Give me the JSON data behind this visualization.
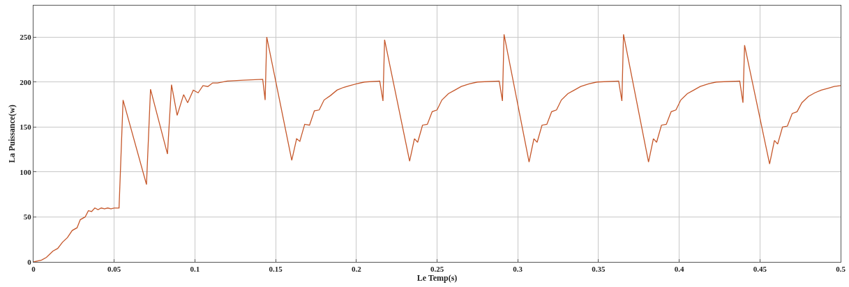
{
  "chart_data": {
    "type": "line",
    "xlabel": "Le Temp(s)",
    "ylabel": "La Puissance(w)",
    "xlim": [
      0,
      0.5
    ],
    "ylim": [
      0,
      285
    ],
    "xticks": [
      0,
      0.05,
      0.1,
      0.15,
      0.2,
      0.25,
      0.3,
      0.35,
      0.4,
      0.45,
      0.5
    ],
    "yticks": [
      0,
      50,
      100,
      150,
      200,
      250
    ],
    "grid": true,
    "series": [
      {
        "color": "#c5572a",
        "x": [
          0,
          0.005,
          0.008,
          0.012,
          0.015,
          0.018,
          0.021,
          0.024,
          0.027,
          0.029,
          0.032,
          0.034,
          0.036,
          0.038,
          0.04,
          0.042,
          0.044,
          0.046,
          0.048,
          0.05,
          0.053,
          0.0555,
          0.07,
          0.0725,
          0.083,
          0.0855,
          0.089,
          0.093,
          0.0955,
          0.099,
          0.102,
          0.105,
          0.108,
          0.111,
          0.114,
          0.12,
          0.13,
          0.142,
          0.1435,
          0.1445,
          0.16,
          0.163,
          0.165,
          0.168,
          0.171,
          0.174,
          0.177,
          0.18,
          0.184,
          0.188,
          0.192,
          0.196,
          0.2,
          0.205,
          0.2145,
          0.2165,
          0.2175,
          0.233,
          0.236,
          0.238,
          0.241,
          0.244,
          0.247,
          0.25,
          0.253,
          0.257,
          0.261,
          0.265,
          0.27,
          0.275,
          0.2885,
          0.2905,
          0.2915,
          0.307,
          0.31,
          0.312,
          0.315,
          0.318,
          0.321,
          0.324,
          0.327,
          0.331,
          0.335,
          0.339,
          0.344,
          0.349,
          0.3625,
          0.3645,
          0.3655,
          0.381,
          0.384,
          0.386,
          0.389,
          0.392,
          0.395,
          0.398,
          0.401,
          0.405,
          0.409,
          0.413,
          0.418,
          0.423,
          0.4375,
          0.4395,
          0.4405,
          0.456,
          0.459,
          0.461,
          0.464,
          0.467,
          0.47,
          0.473,
          0.476,
          0.48,
          0.484,
          0.488,
          0.492,
          0.496,
          0.5
        ],
        "values": [
          0,
          2,
          5,
          12,
          15,
          22,
          27,
          35,
          38,
          47,
          50,
          57,
          56,
          60,
          58,
          60,
          59,
          60,
          59,
          60,
          60,
          180,
          86,
          192,
          120,
          197,
          163,
          186,
          177,
          191,
          188,
          196,
          195,
          199,
          199,
          201,
          202,
          203,
          180,
          250,
          113,
          137,
          134,
          153,
          152,
          168,
          169,
          180,
          185,
          191,
          194,
          196,
          198,
          200,
          201,
          179,
          247,
          112,
          137,
          133,
          152,
          153,
          167,
          169,
          180,
          187,
          191,
          195,
          198,
          200,
          201,
          179,
          253,
          111,
          137,
          133,
          152,
          153,
          167,
          169,
          180,
          187,
          191,
          195,
          198,
          200,
          201,
          179,
          253,
          111,
          137,
          133,
          152,
          153,
          167,
          169,
          180,
          187,
          191,
          195,
          198,
          200,
          201,
          177,
          241,
          109,
          135,
          131,
          150,
          151,
          165,
          167,
          177,
          184,
          188,
          191,
          193,
          195,
          196
        ]
      }
    ]
  }
}
